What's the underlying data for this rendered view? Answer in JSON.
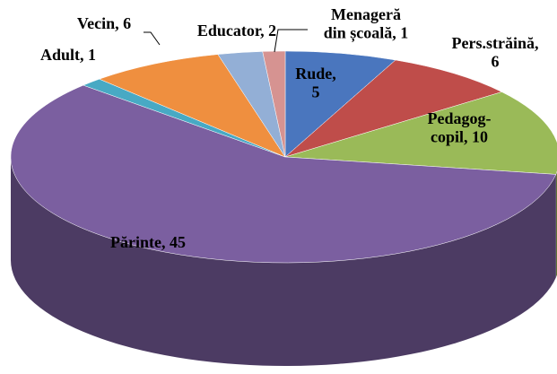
{
  "chart_data": {
    "type": "pie",
    "style": "3d",
    "labels": [
      "Rude,\n5",
      "Pers.străină,\n6",
      "Pedagog-\ncopil, 10",
      "Părinte, 45",
      "Adult, 1",
      "Vecin, 6",
      "Educator, 2",
      "Menageră\ndin școală, 1"
    ],
    "values": [
      5,
      6,
      10,
      45,
      1,
      6,
      2,
      1
    ],
    "colors": [
      "#4a76be",
      "#bf4d4a",
      "#9aba58",
      "#7b5fa0",
      "#48a9c4",
      "#ef8f3f",
      "#93afd6",
      "#d69391"
    ],
    "start_angle": -90,
    "direction": "clockwise"
  }
}
